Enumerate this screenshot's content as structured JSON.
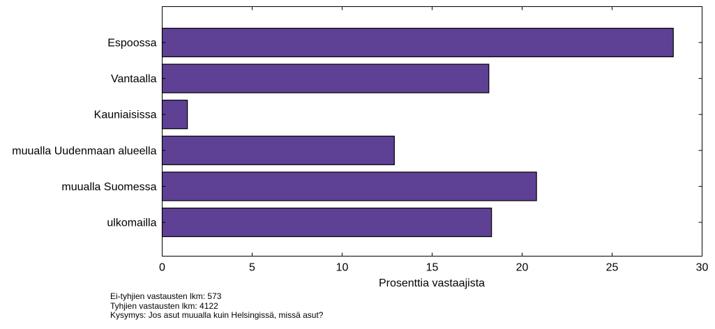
{
  "chart_data": {
    "type": "bar",
    "orientation": "horizontal",
    "categories": [
      "Espoossa",
      "Vantaalla",
      "Kauniaisissa",
      "muualla Uudenmaan alueella",
      "muualla Suomessa",
      "ulkomailla"
    ],
    "values": [
      28.4,
      18.15,
      1.4,
      12.9,
      20.8,
      18.3
    ],
    "xlabel": "Prosenttia vastaajista",
    "ylabel": "",
    "xlim": [
      0,
      30
    ],
    "xticks": [
      0,
      5,
      10,
      15,
      20,
      25,
      30
    ],
    "grid": false,
    "bar_color": "#5e4195"
  },
  "notes": [
    "Ei-tyhjien vastausten lkm: 573",
    "Tyhjien vastausten lkm: 4122",
    "Kysymys: Jos asut muualla kuin Helsingissä, missä asut?"
  ]
}
